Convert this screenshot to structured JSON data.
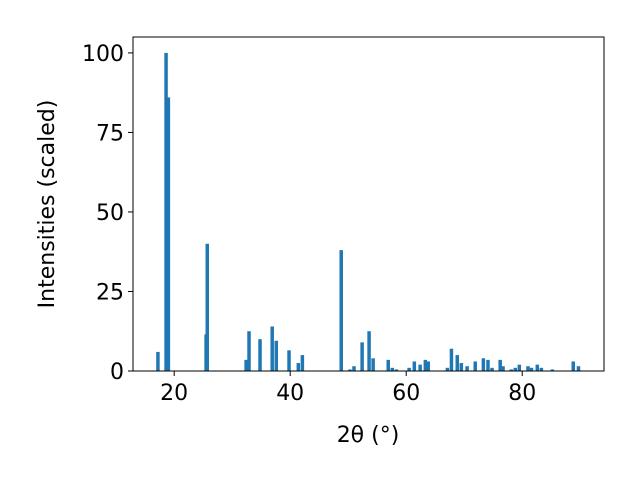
{
  "chart_data": {
    "type": "bar",
    "xlabel": "2θ (°)",
    "ylabel": "Intensities (scaled)",
    "x": [
      17.2,
      18.6,
      19.0,
      25.5,
      25.7,
      32.4,
      32.9,
      34.8,
      36.9,
      37.6,
      39.8,
      41.4,
      42.1,
      48.8,
      50.3,
      51.0,
      52.4,
      53.6,
      54.3,
      56.9,
      57.6,
      58.3,
      60.5,
      61.4,
      62.4,
      63.3,
      63.8,
      67.1,
      67.8,
      68.8,
      69.5,
      70.5,
      71.9,
      73.3,
      74.1,
      74.8,
      76.2,
      76.7,
      78.1,
      78.8,
      79.5,
      81.0,
      81.6,
      82.6,
      83.3,
      85.2,
      88.8,
      89.7
    ],
    "values": [
      6,
      100,
      86,
      11.5,
      40,
      3.5,
      12.5,
      10,
      14,
      9.5,
      6.5,
      2.5,
      5,
      38,
      0.5,
      1.5,
      9,
      12.5,
      4,
      3.5,
      1,
      0.5,
      1,
      3,
      2,
      3.5,
      3,
      1,
      7,
      5,
      2.5,
      1.5,
      3,
      4,
      3.5,
      1,
      3.5,
      1.5,
      0.5,
      1,
      2,
      1.5,
      1,
      2,
      1,
      0.5,
      3,
      1.5
    ],
    "color": "#1f77b4",
    "xlim": [
      12.9,
      94.1
    ],
    "xticks": [
      20,
      40,
      60,
      80
    ],
    "ylim": [
      0,
      105
    ],
    "yticks": [
      0,
      25,
      50,
      75,
      100
    ]
  }
}
